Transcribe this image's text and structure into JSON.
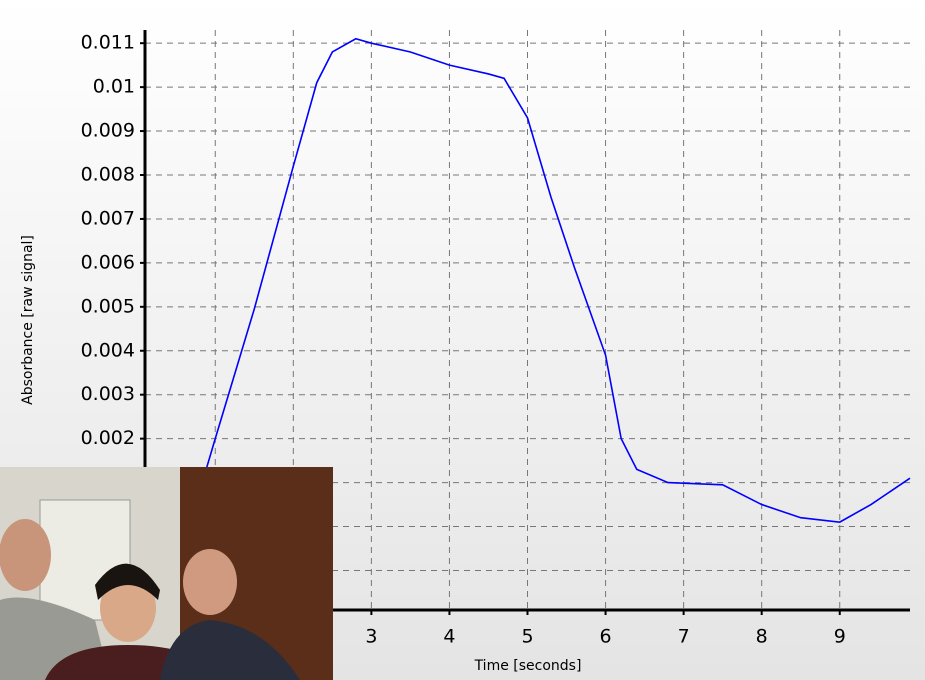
{
  "chart_data": {
    "type": "line",
    "x_label": "Time [seconds]",
    "y_label": "Absorbance [raw signal]",
    "x": [
      0.75,
      1.0,
      1.5,
      2.0,
      2.3,
      2.5,
      2.8,
      3.0,
      3.5,
      4.0,
      4.5,
      4.7,
      5.0,
      5.3,
      5.6,
      6.0,
      6.2,
      6.4,
      6.8,
      7.5,
      8.0,
      8.5,
      9.0,
      9.4,
      9.9
    ],
    "series": [
      {
        "color": "#0000ff",
        "values": [
          0.0005,
          0.002,
          0.00495,
          0.0082,
          0.0101,
          0.0108,
          0.0111,
          0.011,
          0.0108,
          0.0105,
          0.0103,
          0.0102,
          0.0093,
          0.0075,
          0.0059,
          0.0039,
          0.002,
          0.0013,
          0.001,
          0.00095,
          0.0005,
          0.0002,
          0.0001,
          0.0005,
          0.0011
        ]
      }
    ],
    "xlim": [
      0.1,
      9.9
    ],
    "xticks": [
      3,
      4,
      5,
      6,
      7,
      8,
      9
    ],
    "x_grid": [
      1,
      2
    ],
    "ylim": [
      -0.0019,
      0.0113
    ],
    "yticks": [
      0.002,
      0.003,
      0.004,
      0.005,
      0.006,
      0.007,
      0.008,
      0.009,
      0.01,
      0.011
    ],
    "y_grid": [
      0.001,
      0,
      -0.001
    ],
    "grid": true
  }
}
